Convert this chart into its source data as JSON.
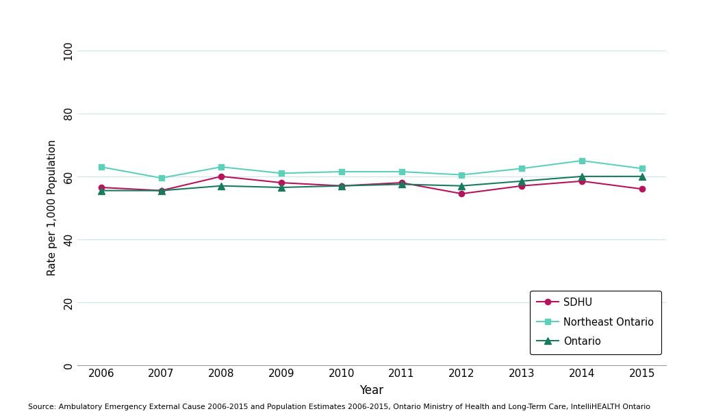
{
  "years": [
    2006,
    2007,
    2008,
    2009,
    2010,
    2011,
    2012,
    2013,
    2014,
    2015
  ],
  "sdhu": [
    56.5,
    55.5,
    60.0,
    58.0,
    57.0,
    58.0,
    54.5,
    57.0,
    58.5,
    56.0
  ],
  "northeast_ontario": [
    63.0,
    59.5,
    63.0,
    61.0,
    61.5,
    61.5,
    60.5,
    62.5,
    65.0,
    62.5
  ],
  "ontario": [
    55.5,
    55.5,
    57.0,
    56.5,
    57.0,
    57.5,
    57.0,
    58.5,
    60.0,
    60.0
  ],
  "sdhu_color": "#b5135b",
  "northeast_color": "#5ecfb8",
  "ontario_color": "#1a7a5e",
  "sdhu_label": "SDHU",
  "northeast_label": "Northeast Ontario",
  "ontario_label": "Ontario",
  "ylabel": "Rate per 1,000 Population",
  "xlabel": "Year",
  "ylim": [
    0,
    100
  ],
  "yticks": [
    0,
    20,
    40,
    60,
    80,
    100
  ],
  "source_text": "Source: Ambulatory Emergency External Cause 2006-2015 and Population Estimates 2006-2015, Ontario Ministry of Health and Long-Term Care, IntelliHEALTH Ontario",
  "background_color": "#ffffff",
  "grid_color": "#cce5ee"
}
